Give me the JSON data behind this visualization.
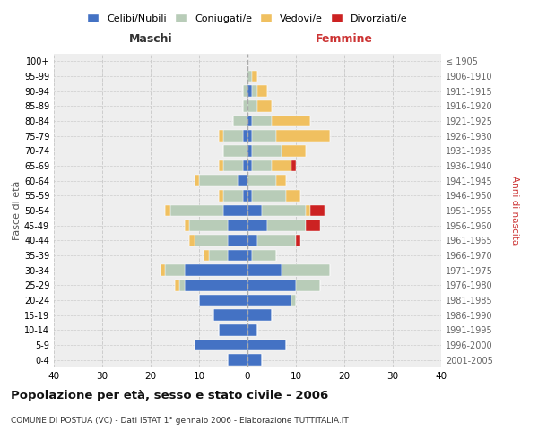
{
  "age_groups": [
    "0-4",
    "5-9",
    "10-14",
    "15-19",
    "20-24",
    "25-29",
    "30-34",
    "35-39",
    "40-44",
    "45-49",
    "50-54",
    "55-59",
    "60-64",
    "65-69",
    "70-74",
    "75-79",
    "80-84",
    "85-89",
    "90-94",
    "95-99",
    "100+"
  ],
  "birth_years": [
    "2001-2005",
    "1996-2000",
    "1991-1995",
    "1986-1990",
    "1981-1985",
    "1976-1980",
    "1971-1975",
    "1966-1970",
    "1961-1965",
    "1956-1960",
    "1951-1955",
    "1946-1950",
    "1941-1945",
    "1936-1940",
    "1931-1935",
    "1926-1930",
    "1921-1925",
    "1916-1920",
    "1911-1915",
    "1906-1910",
    "≤ 1905"
  ],
  "male": {
    "celibi": [
      4,
      11,
      6,
      7,
      10,
      13,
      13,
      4,
      4,
      4,
      5,
      1,
      2,
      1,
      0,
      1,
      0,
      0,
      0,
      0,
      0
    ],
    "coniugati": [
      0,
      0,
      0,
      0,
      0,
      1,
      4,
      4,
      7,
      8,
      11,
      4,
      8,
      4,
      5,
      4,
      3,
      1,
      1,
      0,
      0
    ],
    "vedovi": [
      0,
      0,
      0,
      0,
      0,
      1,
      1,
      1,
      1,
      1,
      1,
      1,
      1,
      1,
      0,
      1,
      0,
      0,
      0,
      0,
      0
    ],
    "divorziati": [
      0,
      0,
      0,
      0,
      0,
      0,
      0,
      0,
      0,
      0,
      0,
      0,
      0,
      0,
      0,
      0,
      0,
      0,
      0,
      0,
      0
    ]
  },
  "female": {
    "nubili": [
      3,
      8,
      2,
      5,
      9,
      10,
      7,
      1,
      2,
      4,
      3,
      1,
      0,
      1,
      1,
      1,
      1,
      0,
      1,
      0,
      0
    ],
    "coniugate": [
      0,
      0,
      0,
      0,
      1,
      5,
      10,
      5,
      8,
      8,
      9,
      7,
      6,
      4,
      6,
      5,
      4,
      2,
      1,
      1,
      0
    ],
    "vedove": [
      0,
      0,
      0,
      0,
      0,
      0,
      0,
      0,
      0,
      0,
      1,
      3,
      2,
      4,
      5,
      11,
      8,
      3,
      2,
      1,
      0
    ],
    "divorziate": [
      0,
      0,
      0,
      0,
      0,
      0,
      0,
      0,
      1,
      3,
      3,
      0,
      0,
      1,
      0,
      0,
      0,
      0,
      0,
      0,
      0
    ]
  },
  "colors": {
    "celibi_nubili": "#4472C4",
    "coniugati": "#B8CCB8",
    "vedovi": "#F0C060",
    "divorziati": "#CC2222"
  },
  "title": "Popolazione per età, sesso e stato civile - 2006",
  "subtitle": "COMUNE DI POSTUA (VC) - Dati ISTAT 1° gennaio 2006 - Elaborazione TUTTITALIA.IT",
  "xlabel_left": "Maschi",
  "xlabel_right": "Femmine",
  "ylabel_left": "Fasce di età",
  "ylabel_right": "Anni di nascita",
  "xlim": 40,
  "background_color": "#ffffff",
  "plot_bg": "#eeeeee",
  "grid_color": "#cccccc"
}
